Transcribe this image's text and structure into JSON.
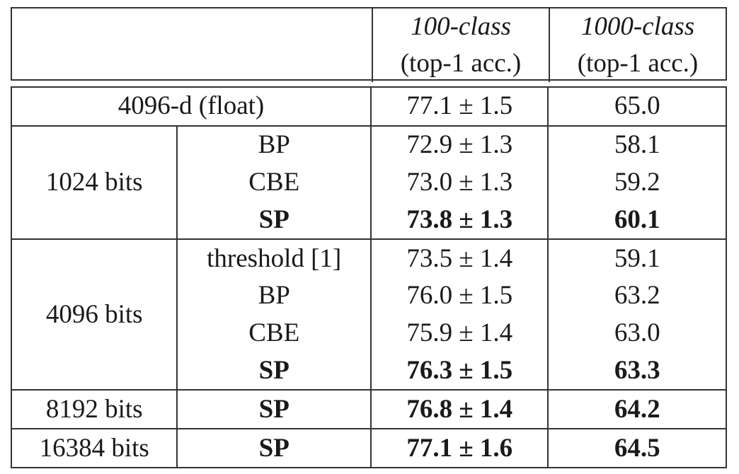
{
  "header": {
    "col_100": {
      "title": "100-class",
      "sub": "(top-1 acc.)"
    },
    "col_1000": {
      "title": "1000-class",
      "sub": "(top-1 acc.)"
    }
  },
  "rows": {
    "float": {
      "label": "4096-d (float)",
      "acc100": "77.1 ± 1.5",
      "acc1000": "65.0"
    },
    "b1024": {
      "group": "1024 bits",
      "r1": {
        "method": "BP",
        "acc100": "72.9 ± 1.3",
        "acc1000": "58.1"
      },
      "r2": {
        "method": "CBE",
        "acc100": "73.0 ± 1.3",
        "acc1000": "59.2"
      },
      "r3": {
        "method": "SP",
        "acc100": "73.8 ± 1.3",
        "acc1000": "60.1"
      }
    },
    "b4096": {
      "group": "4096 bits",
      "r1": {
        "method": "threshold [1]",
        "acc100": "73.5 ± 1.4",
        "acc1000": "59.1"
      },
      "r2": {
        "method": "BP",
        "acc100": "76.0 ± 1.5",
        "acc1000": "63.2"
      },
      "r3": {
        "method": "CBE",
        "acc100": "75.9 ± 1.4",
        "acc1000": "63.0"
      },
      "r4": {
        "method": "SP",
        "acc100": "76.3 ± 1.5",
        "acc1000": "63.3"
      }
    },
    "b8192": {
      "group": "8192 bits",
      "method": "SP",
      "acc100": "76.8 ± 1.4",
      "acc1000": "64.2"
    },
    "b16384": {
      "group": "16384 bits",
      "method": "SP",
      "acc100": "77.1 ± 1.6",
      "acc1000": "64.5"
    }
  }
}
